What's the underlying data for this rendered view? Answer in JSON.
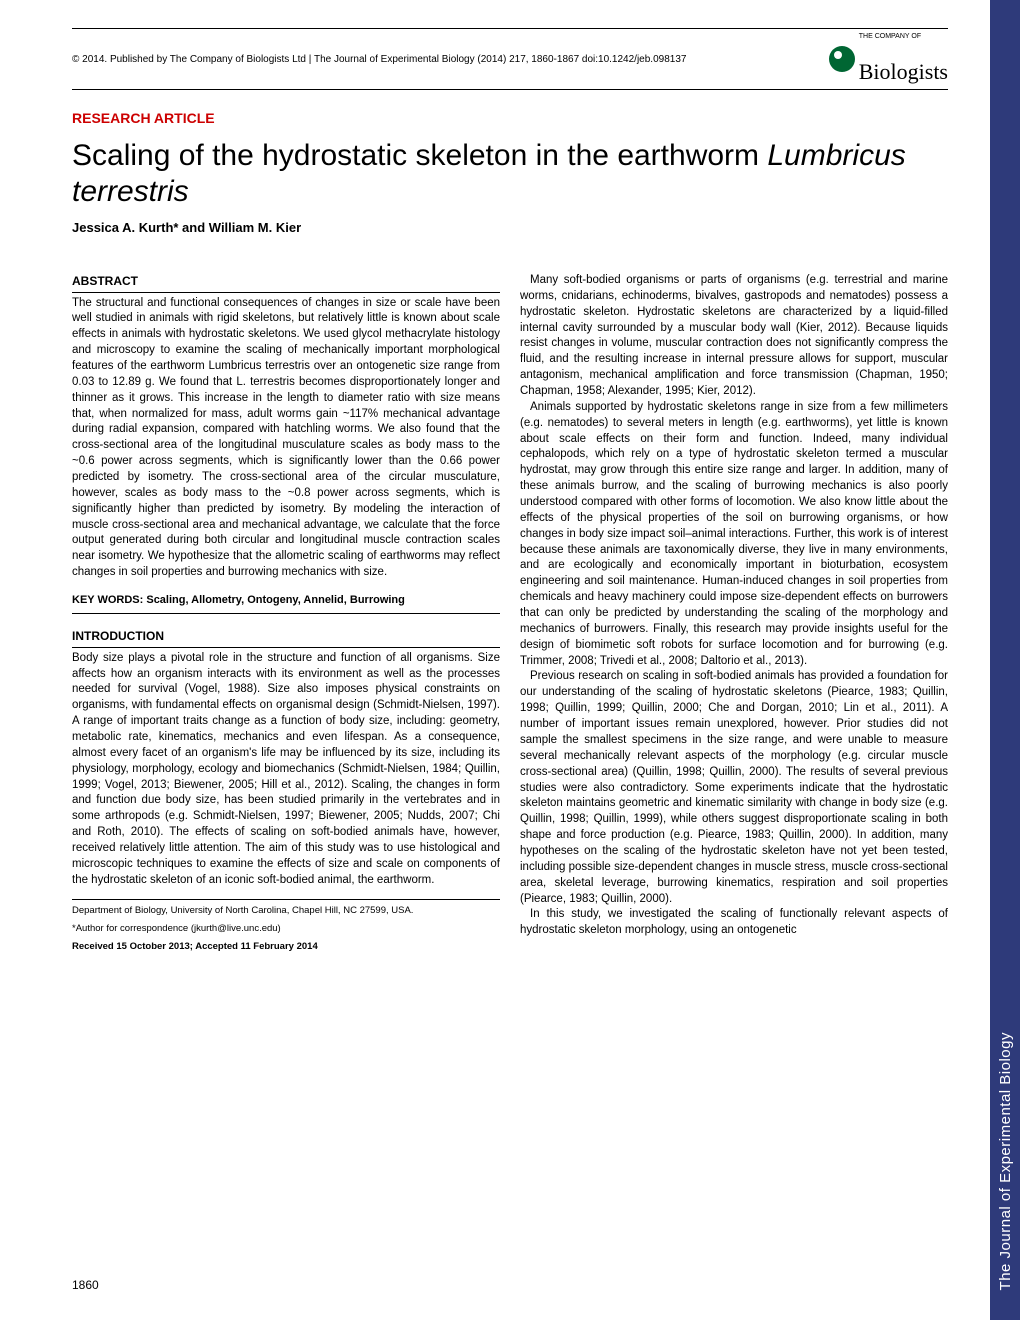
{
  "header": {
    "copyright": "© 2014. Published by The Company of Biologists Ltd | The Journal of Experimental Biology (2014) 217, 1860-1867 doi:10.1242/jeb.098137",
    "logo_super": "THE COMPANY OF",
    "logo_text": "Biologists"
  },
  "article_type": "RESEARCH ARTICLE",
  "title_part1": "Scaling of the hydrostatic skeleton in the earthworm ",
  "title_italic": "Lumbricus terrestris",
  "authors": "Jessica A. Kurth* and William M. Kier",
  "abstract_heading": "ABSTRACT",
  "abstract_text": "The structural and functional consequences of changes in size or scale have been well studied in animals with rigid skeletons, but relatively little is known about scale effects in animals with hydrostatic skeletons. We used glycol methacrylate histology and microscopy to examine the scaling of mechanically important morphological features of the earthworm Lumbricus terrestris over an ontogenetic size range from 0.03 to 12.89 g. We found that L. terrestris becomes disproportionately longer and thinner as it grows. This increase in the length to diameter ratio with size means that, when normalized for mass, adult worms gain ~117% mechanical advantage during radial expansion, compared with hatchling worms. We also found that the cross-sectional area of the longitudinal musculature scales as body mass to the ~0.6 power across segments, which is significantly lower than the 0.66 power predicted by isometry. The cross-sectional area of the circular musculature, however, scales as body mass to the ~0.8 power across segments, which is significantly higher than predicted by isometry. By modeling the interaction of muscle cross-sectional area and mechanical advantage, we calculate that the force output generated during both circular and longitudinal muscle contraction scales near isometry. We hypothesize that the allometric scaling of earthworms may reflect changes in soil properties and burrowing mechanics with size.",
  "keywords": "KEY WORDS: Scaling, Allometry, Ontogeny, Annelid, Burrowing",
  "intro_heading": "INTRODUCTION",
  "intro_p1": "Body size plays a pivotal role in the structure and function of all organisms. Size affects how an organism interacts with its environment as well as the processes needed for survival (Vogel, 1988). Size also imposes physical constraints on organisms, with fundamental effects on organismal design (Schmidt-Nielsen, 1997). A range of important traits change as a function of body size, including: geometry, metabolic rate, kinematics, mechanics and even lifespan. As a consequence, almost every facet of an organism's life may be influenced by its size, including its physiology, morphology, ecology and biomechanics (Schmidt-Nielsen, 1984; Quillin, 1999; Vogel, 2013; Biewener, 2005; Hill et al., 2012). Scaling, the changes in form and function due body size, has been studied primarily in the vertebrates and in some arthropods (e.g. Schmidt-Nielsen, 1997; Biewener, 2005; Nudds, 2007; Chi and Roth, 2010). The effects of scaling on soft-bodied animals have, however, received relatively little attention. The aim of this study was to use histological and microscopic techniques to examine the effects of size and scale on components of the hydrostatic skeleton of an iconic soft-bodied animal, the earthworm.",
  "col2_p1": "Many soft-bodied organisms or parts of organisms (e.g. terrestrial and marine worms, cnidarians, echinoderms, bivalves, gastropods and nematodes) possess a hydrostatic skeleton. Hydrostatic skeletons are characterized by a liquid-filled internal cavity surrounded by a muscular body wall (Kier, 2012). Because liquids resist changes in volume, muscular contraction does not significantly compress the fluid, and the resulting increase in internal pressure allows for support, muscular antagonism, mechanical amplification and force transmission (Chapman, 1950; Chapman, 1958; Alexander, 1995; Kier, 2012).",
  "col2_p2": "Animals supported by hydrostatic skeletons range in size from a few millimeters (e.g. nematodes) to several meters in length (e.g. earthworms), yet little is known about scale effects on their form and function. Indeed, many individual cephalopods, which rely on a type of hydrostatic skeleton termed a muscular hydrostat, may grow through this entire size range and larger. In addition, many of these animals burrow, and the scaling of burrowing mechanics is also poorly understood compared with other forms of locomotion. We also know little about the effects of the physical properties of the soil on burrowing organisms, or how changes in body size impact soil–animal interactions. Further, this work is of interest because these animals are taxonomically diverse, they live in many environments, and are ecologically and economically important in bioturbation, ecosystem engineering and soil maintenance. Human-induced changes in soil properties from chemicals and heavy machinery could impose size-dependent effects on burrowers that can only be predicted by understanding the scaling of the morphology and mechanics of burrowers. Finally, this research may provide insights useful for the design of biomimetic soft robots for surface locomotion and for burrowing (e.g. Trimmer, 2008; Trivedi et al., 2008; Daltorio et al., 2013).",
  "col2_p3": "Previous research on scaling in soft-bodied animals has provided a foundation for our understanding of the scaling of hydrostatic skeletons (Piearce, 1983; Quillin, 1998; Quillin, 1999; Quillin, 2000; Che and Dorgan, 2010; Lin et al., 2011). A number of important issues remain unexplored, however. Prior studies did not sample the smallest specimens in the size range, and were unable to measure several mechanically relevant aspects of the morphology (e.g. circular muscle cross-sectional area) (Quillin, 1998; Quillin, 2000). The results of several previous studies were also contradictory. Some experiments indicate that the hydrostatic skeleton maintains geometric and kinematic similarity with change in body size (e.g. Quillin, 1998; Quillin, 1999), while others suggest disproportionate scaling in both shape and force production (e.g. Piearce, 1983; Quillin, 2000). In addition, many hypotheses on the scaling of the hydrostatic skeleton have not yet been tested, including possible size-dependent changes in muscle stress, muscle cross-sectional area, skeletal leverage, burrowing kinematics, respiration and soil properties (Piearce, 1983; Quillin, 2000).",
  "col2_p4": "In this study, we investigated the scaling of functionally relevant aspects of hydrostatic skeleton morphology, using an ontogenetic",
  "footer": {
    "affiliation": "Department of Biology, University of North Carolina, Chapel Hill, NC 27599, USA.",
    "correspondence": "*Author for correspondence (jkurth@live.unc.edu)",
    "dates": "Received 15 October 2013; Accepted 11 February 2014"
  },
  "page_number": "1860",
  "sidebar": "The Journal of Experimental Biology",
  "colors": {
    "article_type": "#c00",
    "sidebar": "#2e3a7a",
    "logo_icon": "#006633"
  }
}
